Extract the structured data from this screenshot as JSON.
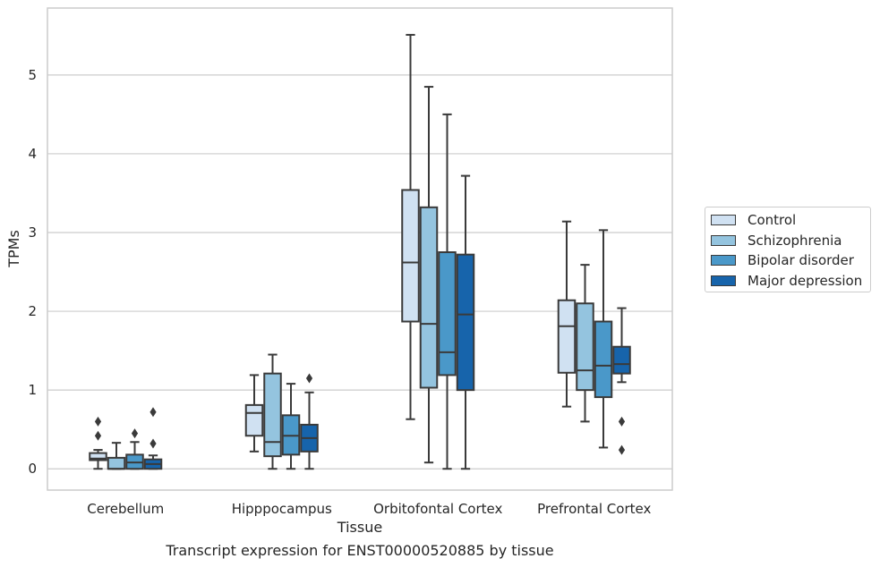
{
  "chart_data": {
    "type": "box",
    "xlabel": "Tissue",
    "ylabel": "TPMs",
    "ylim": [
      -0.27,
      5.85
    ],
    "yticks": [
      0,
      1,
      2,
      3,
      4,
      5
    ],
    "grid": "horizontal",
    "legend_position": "right",
    "categories": [
      "Cerebellum",
      "Hipppocampus",
      "Orbitofontal Cortex",
      "Prefrontal Cortex"
    ],
    "series": [
      {
        "name": "Control",
        "color": "#d0e1f2",
        "boxes": [
          {
            "whislo": 0.0,
            "q1": 0.11,
            "med": 0.13,
            "q3": 0.2,
            "whishi": 0.24,
            "fliers": [
              0.42,
              0.6
            ]
          },
          {
            "whislo": 0.22,
            "q1": 0.42,
            "med": 0.71,
            "q3": 0.81,
            "whishi": 1.19,
            "fliers": []
          },
          {
            "whislo": 0.63,
            "q1": 1.87,
            "med": 2.62,
            "q3": 3.54,
            "whishi": 5.51,
            "fliers": []
          },
          {
            "whislo": 0.79,
            "q1": 1.22,
            "med": 1.81,
            "q3": 2.14,
            "whishi": 3.14,
            "fliers": []
          }
        ]
      },
      {
        "name": "Schizophrenia",
        "color": "#94c4df",
        "boxes": [
          {
            "whislo": 0.0,
            "q1": 0.0,
            "med": 0.0,
            "q3": 0.14,
            "whishi": 0.33,
            "fliers": []
          },
          {
            "whislo": 0.0,
            "q1": 0.16,
            "med": 0.34,
            "q3": 1.21,
            "whishi": 1.45,
            "fliers": []
          },
          {
            "whislo": 0.08,
            "q1": 1.03,
            "med": 1.84,
            "q3": 3.32,
            "whishi": 4.85,
            "fliers": []
          },
          {
            "whislo": 0.6,
            "q1": 1.0,
            "med": 1.25,
            "q3": 2.1,
            "whishi": 2.59,
            "fliers": []
          }
        ]
      },
      {
        "name": "Bipolar disorder",
        "color": "#4a98c9",
        "boxes": [
          {
            "whislo": 0.0,
            "q1": 0.0,
            "med": 0.08,
            "q3": 0.18,
            "whishi": 0.34,
            "fliers": [
              0.45
            ]
          },
          {
            "whislo": 0.0,
            "q1": 0.18,
            "med": 0.42,
            "q3": 0.68,
            "whishi": 1.08,
            "fliers": []
          },
          {
            "whislo": 0.0,
            "q1": 1.19,
            "med": 1.48,
            "q3": 2.75,
            "whishi": 4.5,
            "fliers": []
          },
          {
            "whislo": 0.27,
            "q1": 0.91,
            "med": 1.31,
            "q3": 1.87,
            "whishi": 3.03,
            "fliers": []
          }
        ]
      },
      {
        "name": "Major depression",
        "color": "#1764ab",
        "boxes": [
          {
            "whislo": 0.0,
            "q1": 0.0,
            "med": 0.06,
            "q3": 0.12,
            "whishi": 0.17,
            "fliers": [
              0.32,
              0.72
            ]
          },
          {
            "whislo": 0.0,
            "q1": 0.22,
            "med": 0.39,
            "q3": 0.56,
            "whishi": 0.97,
            "fliers": [
              1.15
            ]
          },
          {
            "whislo": 0.0,
            "q1": 1.0,
            "med": 1.96,
            "q3": 2.72,
            "whishi": 3.72,
            "fliers": []
          },
          {
            "whislo": 1.1,
            "q1": 1.21,
            "med": 1.33,
            "q3": 1.55,
            "whishi": 2.04,
            "fliers": [
              0.24,
              0.6
            ]
          }
        ]
      }
    ],
    "caption": "Transcript expression for ENST00000520885 by tissue"
  }
}
